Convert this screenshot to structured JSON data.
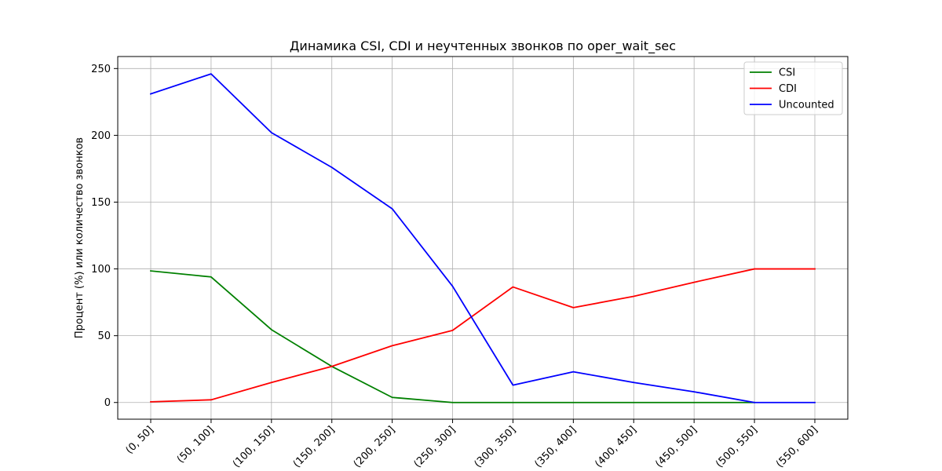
{
  "chart_data": {
    "type": "line",
    "title": "Динамика CSI, CDI и неучтенных звонков по oper_wait_sec",
    "xlabel": "",
    "ylabel": "Процент (%) или количество звонков",
    "categories": [
      "(0, 50]",
      "(50, 100]",
      "(100, 150]",
      "(150, 200]",
      "(200, 250]",
      "(250, 300]",
      "(300, 350]",
      "(350, 400]",
      "(400, 450]",
      "(450, 500]",
      "(500, 550]",
      "(550, 600]"
    ],
    "ylim": [
      -12.5,
      259
    ],
    "yticks": [
      0,
      50,
      100,
      150,
      200,
      250
    ],
    "grid": true,
    "legend_position": "top-right",
    "series": [
      {
        "name": "CSI",
        "color": "#008000",
        "values": [
          98.5,
          94,
          54.5,
          27,
          3.8,
          0,
          0,
          0,
          0,
          0,
          0,
          null
        ]
      },
      {
        "name": "CDI",
        "color": "#ff0000",
        "values": [
          0.5,
          2,
          15,
          27,
          42.5,
          54,
          86.5,
          71,
          79.5,
          90,
          100,
          100
        ]
      },
      {
        "name": "Uncounted",
        "color": "#0000ff",
        "values": [
          231,
          246,
          202,
          176,
          145,
          87,
          13,
          23,
          15,
          8,
          0,
          0
        ]
      }
    ]
  }
}
